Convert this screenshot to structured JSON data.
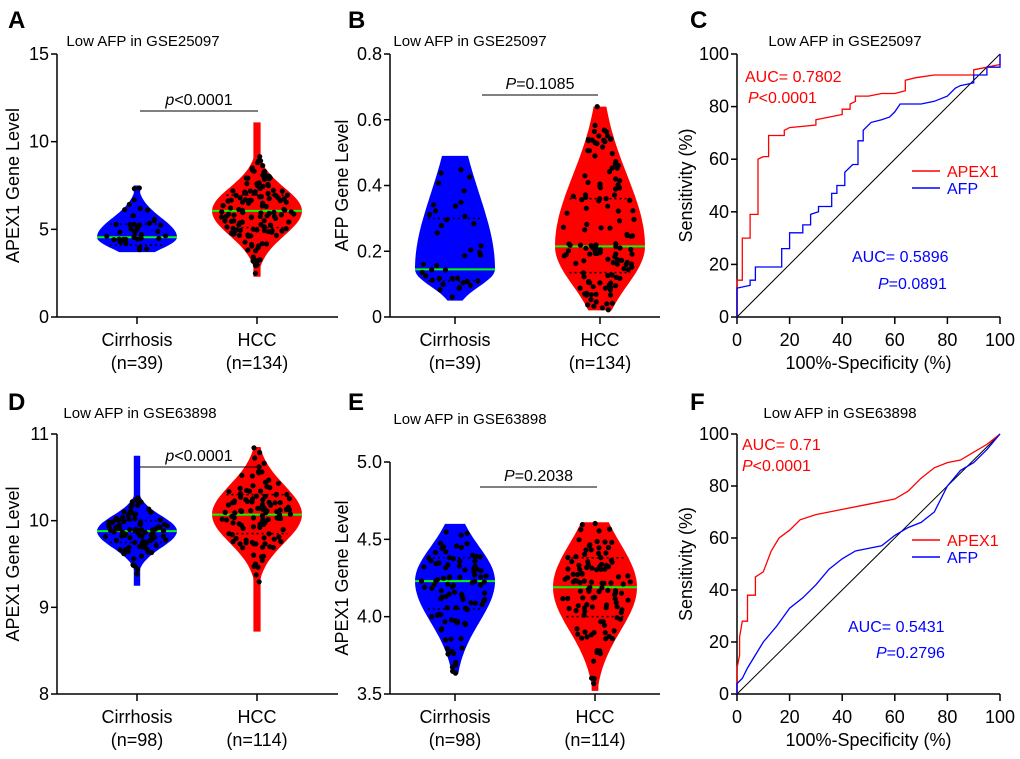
{
  "chart_data": [
    {
      "panel": "A",
      "type": "violin",
      "title": "Low AFP in GSE25097",
      "ylabel": "APEX1 Gene Level",
      "ylim": [
        0,
        15
      ],
      "yticks": [
        0,
        5,
        10,
        15
      ],
      "groups": [
        {
          "label": "Cirrhosis",
          "n": "(n=39)",
          "color": "#0000ff",
          "min": 3.7,
          "q1": 4.1,
          "median": 4.55,
          "q3": 5.3,
          "max": 7.5
        },
        {
          "label": "HCC",
          "n": "(n=134)",
          "color": "#ff0000",
          "min": 2.3,
          "q1": 5.1,
          "median": 6.05,
          "q3": 6.95,
          "max": 11.1
        }
      ],
      "pvalue": {
        "p": "p",
        "rest": "<0.0001"
      }
    },
    {
      "panel": "B",
      "type": "violin",
      "title": "Low AFP in GSE25097",
      "ylabel": "AFP Gene Level",
      "ylim": [
        0,
        0.8
      ],
      "yticks": [
        "0",
        "0.2",
        "0.4",
        "0.6",
        "0.8"
      ],
      "groups": [
        {
          "label": "Cirrhosis",
          "n": "(n=39)",
          "color": "#0000ff",
          "min": 0.05,
          "q1": 0.11,
          "median": 0.145,
          "q3": 0.3,
          "max": 0.49
        },
        {
          "label": "HCC",
          "n": "(n=134)",
          "color": "#ff0000",
          "min": 0.02,
          "q1": 0.135,
          "median": 0.215,
          "q3": 0.36,
          "max": 0.64
        }
      ],
      "pvalue": {
        "p": "P",
        "rest": "=0.1085"
      }
    },
    {
      "panel": "C",
      "type": "line",
      "title": "Low AFP in GSE25097",
      "xlabel": "100%-Specificity (%)",
      "ylabel": "Sensitivity (%)",
      "xlim": [
        0,
        100
      ],
      "ylim": [
        0,
        100
      ],
      "ticks": [
        0,
        20,
        40,
        60,
        80,
        100
      ],
      "series": [
        {
          "name": "APEX1",
          "color": "#ff0000",
          "auc": "AUC= 0.7802",
          "p": "P",
          "prest": "<0.0001",
          "points": [
            [
              0,
              0
            ],
            [
              0,
              14
            ],
            [
              2,
              14
            ],
            [
              2,
              30
            ],
            [
              5,
              30
            ],
            [
              5,
              39
            ],
            [
              8,
              39
            ],
            [
              8,
              60
            ],
            [
              10,
              61
            ],
            [
              12,
              61
            ],
            [
              12,
              69
            ],
            [
              18,
              69
            ],
            [
              18,
              71
            ],
            [
              20,
              72
            ],
            [
              30,
              73
            ],
            [
              30,
              75
            ],
            [
              35,
              76
            ],
            [
              40,
              77
            ],
            [
              40,
              79
            ],
            [
              43,
              79
            ],
            [
              43,
              81
            ],
            [
              45,
              82
            ],
            [
              45,
              84
            ],
            [
              50,
              84
            ],
            [
              55,
              85
            ],
            [
              60,
              85
            ],
            [
              64,
              86
            ],
            [
              64,
              90
            ],
            [
              68,
              91
            ],
            [
              75,
              92
            ],
            [
              90,
              92
            ],
            [
              90,
              94
            ],
            [
              95,
              95
            ],
            [
              100,
              96
            ],
            [
              100,
              100
            ]
          ]
        },
        {
          "name": "AFP",
          "color": "#0000ff",
          "auc": "AUC= 0.5896",
          "p": "P",
          "prest": "=0.0891",
          "points": [
            [
              0,
              0
            ],
            [
              0,
              11
            ],
            [
              5,
              12
            ],
            [
              5,
              14
            ],
            [
              7,
              14
            ],
            [
              7,
              19
            ],
            [
              17,
              19
            ],
            [
              17,
              26
            ],
            [
              20,
              26
            ],
            [
              20,
              32
            ],
            [
              25,
              32
            ],
            [
              25,
              35
            ],
            [
              28,
              35
            ],
            [
              28,
              39
            ],
            [
              31,
              40
            ],
            [
              31,
              42
            ],
            [
              36,
              42
            ],
            [
              36,
              47
            ],
            [
              38,
              47
            ],
            [
              38,
              50
            ],
            [
              41,
              50
            ],
            [
              41,
              55
            ],
            [
              44,
              58
            ],
            [
              46,
              58
            ],
            [
              46,
              67
            ],
            [
              48,
              67
            ],
            [
              48,
              71
            ],
            [
              51,
              74
            ],
            [
              55,
              75
            ],
            [
              58,
              76
            ],
            [
              60,
              78
            ],
            [
              62,
              81
            ],
            [
              70,
              81
            ],
            [
              75,
              82
            ],
            [
              80,
              84
            ],
            [
              83,
              87
            ],
            [
              85,
              88
            ],
            [
              90,
              89
            ],
            [
              90,
              92
            ],
            [
              95,
              92
            ],
            [
              95,
              95
            ],
            [
              100,
              95
            ],
            [
              100,
              100
            ]
          ]
        }
      ]
    },
    {
      "panel": "D",
      "type": "violin",
      "title": "Low AFP in GSE63898",
      "ylabel": "APEX1 Gene Level",
      "ylim": [
        8,
        11
      ],
      "yticks": [
        8,
        9,
        10,
        11
      ],
      "groups": [
        {
          "label": "Cirrhosis",
          "n": "(n=98)",
          "color": "#0000ff",
          "min": 9.25,
          "q1": 9.75,
          "median": 9.88,
          "q3": 10.0,
          "max": 10.75
        },
        {
          "label": "HCC",
          "n": "(n=114)",
          "color": "#ff0000",
          "min": 8.72,
          "q1": 9.85,
          "median": 10.07,
          "q3": 10.3,
          "max": 10.85
        }
      ],
      "pvalue": {
        "p": "p",
        "rest": "<0.0001"
      }
    },
    {
      "panel": "E",
      "type": "violin",
      "title": "Low AFP in GSE63898",
      "ylabel": "APEX1 Gene Level",
      "ylim": [
        3.5,
        5.0
      ],
      "yticks": [
        "3.5",
        "4.0",
        "4.5",
        "5.0"
      ],
      "groups": [
        {
          "label": "Cirrhosis",
          "n": "(n=98)",
          "color": "#0000ff",
          "min": 3.63,
          "q1": 4.05,
          "median": 4.23,
          "q3": 4.38,
          "max": 4.6
        },
        {
          "label": "HCC",
          "n": "(n=114)",
          "color": "#ff0000",
          "min": 3.52,
          "q1": 4.0,
          "median": 4.19,
          "q3": 4.38,
          "max": 4.61
        }
      ],
      "pvalue": {
        "p": "P",
        "rest": "=0.2038"
      }
    },
    {
      "panel": "F",
      "type": "line",
      "title": "Low AFP in GSE63898",
      "xlabel": "100%-Specificity (%)",
      "ylabel": "Sensitivity (%)",
      "xlim": [
        0,
        100
      ],
      "ylim": [
        0,
        100
      ],
      "ticks": [
        0,
        20,
        40,
        60,
        80,
        100
      ],
      "series": [
        {
          "name": "APEX1",
          "color": "#ff0000",
          "auc": "AUC= 0.71",
          "p": "P",
          "prest": "<0.0001",
          "points": [
            [
              0,
              0
            ],
            [
              0,
              10
            ],
            [
              1,
              15
            ],
            [
              1,
              22
            ],
            [
              2,
              28
            ],
            [
              4,
              28
            ],
            [
              4,
              38
            ],
            [
              7,
              38
            ],
            [
              7,
              45
            ],
            [
              10,
              47
            ],
            [
              13,
              55
            ],
            [
              16,
              60
            ],
            [
              20,
              63
            ],
            [
              24,
              67
            ],
            [
              30,
              69
            ],
            [
              40,
              71
            ],
            [
              50,
              73
            ],
            [
              60,
              75
            ],
            [
              65,
              78
            ],
            [
              70,
              83
            ],
            [
              75,
              87
            ],
            [
              80,
              89
            ],
            [
              85,
              90
            ],
            [
              90,
              93
            ],
            [
              95,
              96
            ],
            [
              100,
              100
            ]
          ]
        },
        {
          "name": "AFP",
          "color": "#0000ff",
          "auc": "AUC= 0.5431",
          "p": "P",
          "prest": "=0.2796",
          "points": [
            [
              0,
              0
            ],
            [
              0,
              4
            ],
            [
              2,
              6
            ],
            [
              4,
              10
            ],
            [
              7,
              15
            ],
            [
              10,
              20
            ],
            [
              15,
              26
            ],
            [
              20,
              33
            ],
            [
              25,
              37
            ],
            [
              30,
              42
            ],
            [
              35,
              48
            ],
            [
              40,
              52
            ],
            [
              45,
              55
            ],
            [
              50,
              56
            ],
            [
              55,
              57
            ],
            [
              60,
              61
            ],
            [
              65,
              64
            ],
            [
              70,
              66
            ],
            [
              75,
              70
            ],
            [
              80,
              80
            ],
            [
              85,
              86
            ],
            [
              90,
              89
            ],
            [
              95,
              94
            ],
            [
              100,
              100
            ]
          ]
        }
      ]
    }
  ],
  "median_color": "#00ff00"
}
